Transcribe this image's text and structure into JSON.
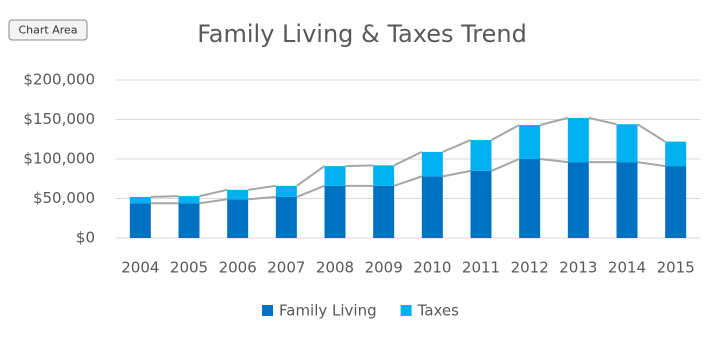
{
  "tooltip": "Chart Area",
  "chart_data": {
    "type": "stacked_bar",
    "title": "Family Living & Taxes Trend",
    "categories": [
      "2004",
      "2005",
      "2006",
      "2007",
      "2008",
      "2009",
      "2010",
      "2011",
      "2012",
      "2013",
      "2014",
      "2015"
    ],
    "series": [
      {
        "name": "Family Living",
        "color": "#0070c0",
        "values": [
          44000,
          44000,
          49000,
          52000,
          66000,
          66000,
          78000,
          85000,
          100000,
          96000,
          96000,
          91000
        ]
      },
      {
        "name": "Taxes",
        "color": "#00b0f0",
        "values": [
          8000,
          9000,
          12000,
          14000,
          25000,
          26000,
          31000,
          39000,
          43000,
          56000,
          48000,
          31000
        ]
      }
    ],
    "ylim": [
      0,
      200000
    ],
    "yticks": [
      {
        "value": 0,
        "label": "$0"
      },
      {
        "value": 50000,
        "label": "$50,000"
      },
      {
        "value": 100000,
        "label": "$100,000"
      },
      {
        "value": 150000,
        "label": "$150,000"
      },
      {
        "value": 200000,
        "label": "$200,000"
      }
    ],
    "grid": true,
    "series_lines": true,
    "series_line_color": "#a6a6a6",
    "legend": "bottom"
  }
}
